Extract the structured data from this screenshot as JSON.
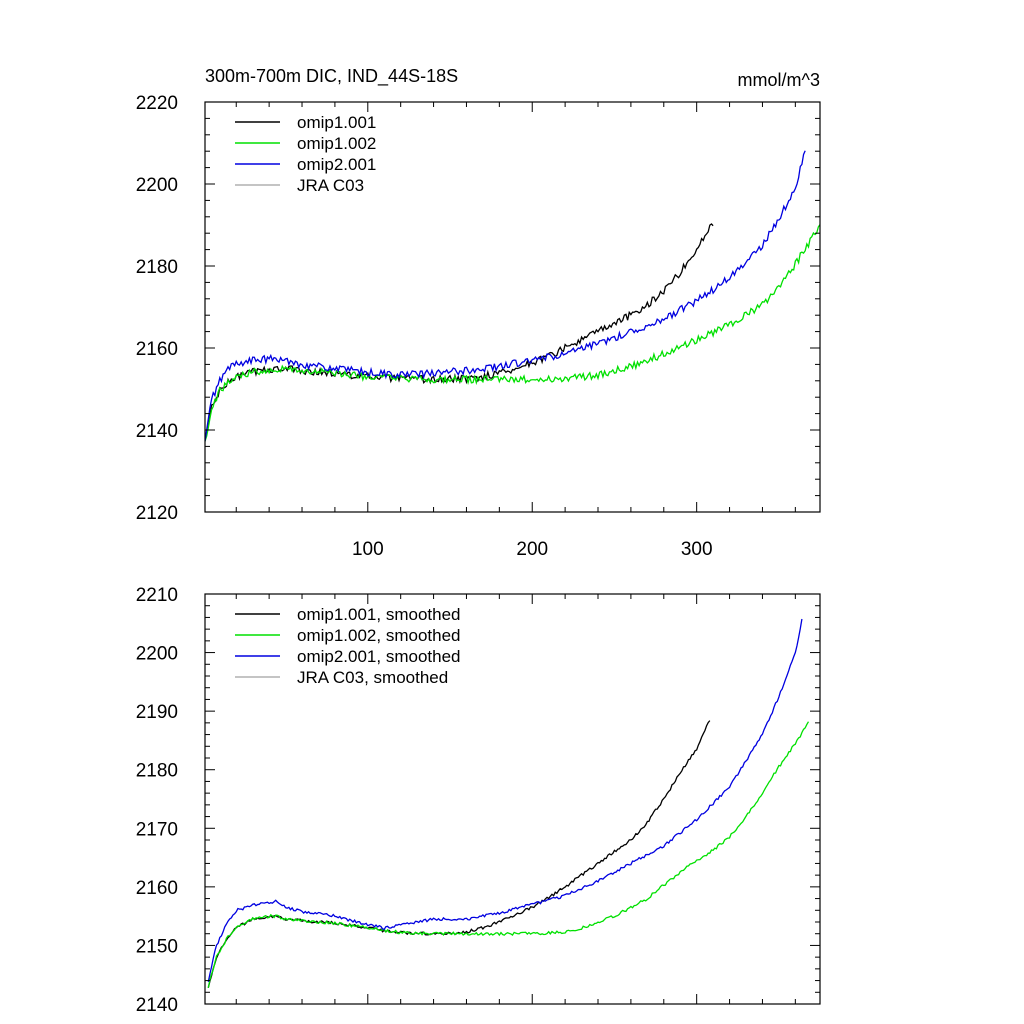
{
  "figure": {
    "title_left": "300m-700m DIC, IND_44S-18S",
    "title_right": "mmol/m^3"
  },
  "colors": {
    "omip1_001": "#000000",
    "omip1_002": "#00e000",
    "omip2_001": "#0000e0",
    "jra_c03": "#b0b0b0"
  },
  "chart_data": [
    {
      "type": "line",
      "title": "300m-700m DIC, IND_44S-18S",
      "units": "mmol/m^3",
      "xlabel": "",
      "ylabel": "",
      "xlim": [
        1,
        375
      ],
      "ylim": [
        2120,
        2220
      ],
      "xticks": [
        100,
        200,
        300
      ],
      "yticks": [
        2120,
        2140,
        2160,
        2180,
        2200,
        2220
      ],
      "show_xtick_labels": true,
      "noise": 0.9,
      "legend_position": "top-left",
      "series": [
        {
          "name": "omip1.001",
          "color": "#000000",
          "x": [
            1,
            5,
            10,
            15,
            20,
            30,
            40,
            50,
            60,
            80,
            100,
            120,
            140,
            160,
            170,
            180,
            190,
            200,
            210,
            220,
            230,
            240,
            250,
            260,
            270,
            280,
            290,
            300,
            310
          ],
          "values": [
            2137,
            2145.5,
            2149.5,
            2151.5,
            2153,
            2154.2,
            2154.8,
            2155,
            2154.5,
            2153.8,
            2153,
            2152.5,
            2152.3,
            2152.5,
            2153,
            2154,
            2155,
            2156.5,
            2158,
            2160,
            2162,
            2164,
            2166,
            2168,
            2170.5,
            2174,
            2178.5,
            2184,
            2190.5
          ]
        },
        {
          "name": "omip1.002",
          "color": "#00e000",
          "x": [
            1,
            5,
            10,
            15,
            20,
            30,
            40,
            50,
            60,
            80,
            100,
            120,
            140,
            160,
            180,
            200,
            220,
            240,
            260,
            280,
            300,
            320,
            340,
            350,
            360,
            370,
            375
          ],
          "values": [
            2137,
            2145.5,
            2149.5,
            2151.5,
            2153,
            2154.2,
            2154.8,
            2155,
            2154.5,
            2153.8,
            2153,
            2152.5,
            2152.3,
            2152.3,
            2152.3,
            2152.3,
            2152.5,
            2153.5,
            2155.5,
            2158.5,
            2162,
            2165.5,
            2170.5,
            2174.5,
            2180.5,
            2186.5,
            2190
          ]
        },
        {
          "name": "omip2.001",
          "color": "#0000e0",
          "x": [
            1,
            5,
            10,
            15,
            20,
            30,
            40,
            50,
            60,
            80,
            100,
            120,
            140,
            160,
            180,
            200,
            220,
            240,
            260,
            280,
            300,
            320,
            340,
            350,
            360,
            366
          ],
          "values": [
            2137,
            2147.5,
            2152,
            2155,
            2156.2,
            2157,
            2157.3,
            2157,
            2156,
            2155,
            2154,
            2153.5,
            2153.8,
            2154.5,
            2155.5,
            2157,
            2158.5,
            2161,
            2164,
            2167,
            2171.5,
            2177,
            2185,
            2191.5,
            2199,
            2208
          ]
        },
        {
          "name": "JRA C03",
          "color": "#b0b0b0",
          "x": [],
          "values": []
        }
      ]
    },
    {
      "type": "line",
      "title": "",
      "xlabel": "",
      "ylabel": "",
      "xlim": [
        1,
        375
      ],
      "ylim": [
        2140,
        2210
      ],
      "xticks": [
        100,
        200,
        300
      ],
      "yticks": [
        2140,
        2150,
        2160,
        2170,
        2180,
        2190,
        2200,
        2210
      ],
      "show_xtick_labels": false,
      "noise": 0.25,
      "legend_position": "top-left",
      "series": [
        {
          "name": "omip1.001, smoothed",
          "color": "#000000",
          "x": [
            3,
            8,
            15,
            20,
            30,
            40,
            45,
            50,
            60,
            80,
            100,
            110,
            120,
            140,
            150,
            160,
            170,
            180,
            190,
            200,
            210,
            220,
            230,
            240,
            250,
            260,
            270,
            280,
            290,
            300,
            308
          ],
          "values": [
            2143,
            2148,
            2151.5,
            2153,
            2154.5,
            2155,
            2155,
            2154.5,
            2154.2,
            2153.8,
            2153,
            2152.5,
            2152.2,
            2152,
            2152,
            2152.3,
            2153,
            2154,
            2155.3,
            2156.5,
            2158.2,
            2160,
            2162,
            2164,
            2166,
            2168,
            2171,
            2175,
            2179.5,
            2183.5,
            2188.5
          ]
        },
        {
          "name": "omip1.002, smoothed",
          "color": "#00e000",
          "x": [
            3,
            8,
            15,
            20,
            30,
            40,
            45,
            50,
            60,
            80,
            100,
            120,
            140,
            160,
            180,
            200,
            220,
            230,
            240,
            250,
            260,
            270,
            280,
            290,
            300,
            310,
            320,
            330,
            340,
            350,
            360,
            368
          ],
          "values": [
            2143,
            2148,
            2151.5,
            2153,
            2154.5,
            2155,
            2155,
            2154.5,
            2154.2,
            2153.8,
            2153,
            2152.2,
            2152,
            2152,
            2152,
            2152,
            2152.3,
            2153,
            2154,
            2155,
            2156.5,
            2158,
            2160.3,
            2162.5,
            2164.5,
            2166.3,
            2168.5,
            2172,
            2176,
            2180.5,
            2184.5,
            2188
          ]
        },
        {
          "name": "omip2.001, smoothed",
          "color": "#0000e0",
          "x": [
            3,
            8,
            15,
            20,
            30,
            40,
            45,
            50,
            60,
            80,
            100,
            110,
            120,
            140,
            160,
            180,
            200,
            220,
            240,
            260,
            280,
            300,
            320,
            340,
            350,
            360,
            364
          ],
          "values": [
            2144,
            2150,
            2154.2,
            2156,
            2156.8,
            2157.4,
            2157.5,
            2156.5,
            2155.8,
            2155,
            2153.5,
            2153,
            2153.5,
            2154.5,
            2154.5,
            2155.5,
            2157,
            2158.5,
            2161,
            2164,
            2167,
            2171.5,
            2177,
            2186,
            2192.5,
            2200,
            2205.5
          ]
        },
        {
          "name": "JRA C03, smoothed",
          "color": "#b0b0b0",
          "x": [],
          "values": []
        }
      ]
    }
  ]
}
